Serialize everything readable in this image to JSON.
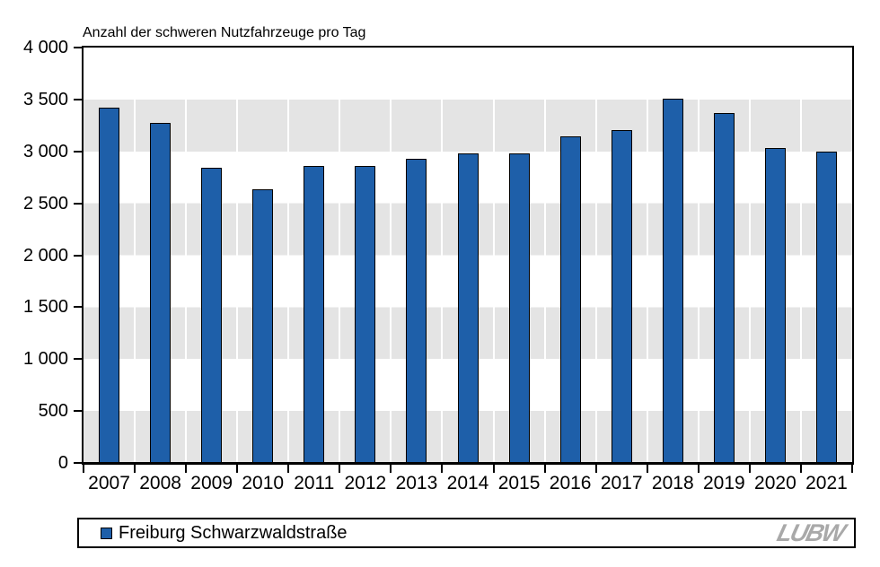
{
  "chart_data": {
    "type": "bar",
    "title": "Anzahl der schweren Nutzfahrzeuge pro Tag",
    "categories": [
      "2007",
      "2008",
      "2009",
      "2010",
      "2011",
      "2012",
      "2013",
      "2014",
      "2015",
      "2016",
      "2017",
      "2018",
      "2019",
      "2020",
      "2021"
    ],
    "series": [
      {
        "name": "Freiburg Schwarzwaldstraße",
        "values": [
          3410,
          3270,
          2830,
          2630,
          2850,
          2850,
          2920,
          2970,
          2970,
          3140,
          3200,
          3500,
          3360,
          3020,
          2990
        ]
      }
    ],
    "xlabel": "",
    "ylabel": "Anzahl der schweren Nutzfahrzeuge pro Tag",
    "ylim": [
      0,
      4000
    ],
    "ytick_step": 500,
    "yticks": [
      {
        "value": 4000,
        "label": "4 000"
      },
      {
        "value": 3500,
        "label": "3 500"
      },
      {
        "value": 3000,
        "label": "3 000"
      },
      {
        "value": 2500,
        "label": "2 500"
      },
      {
        "value": 2000,
        "label": "2 000"
      },
      {
        "value": 1500,
        "label": "1 500"
      },
      {
        "value": 1000,
        "label": "1 000"
      },
      {
        "value": 500,
        "label": "500"
      },
      {
        "value": 0,
        "label": "0"
      }
    ],
    "grid": "alternating-horizontal-bands-with-white-column-separators",
    "legend_position": "bottom",
    "colors": {
      "bar_fill": "#1e5fa9",
      "bar_outline": "#000000",
      "band_gray": "#e4e4e4",
      "background": "#ffffff",
      "logo_gray": "#a9a9a9"
    }
  },
  "legend": {
    "label": "Freiburg Schwarzwaldstraße"
  },
  "logo": {
    "text": "LUBW"
  }
}
